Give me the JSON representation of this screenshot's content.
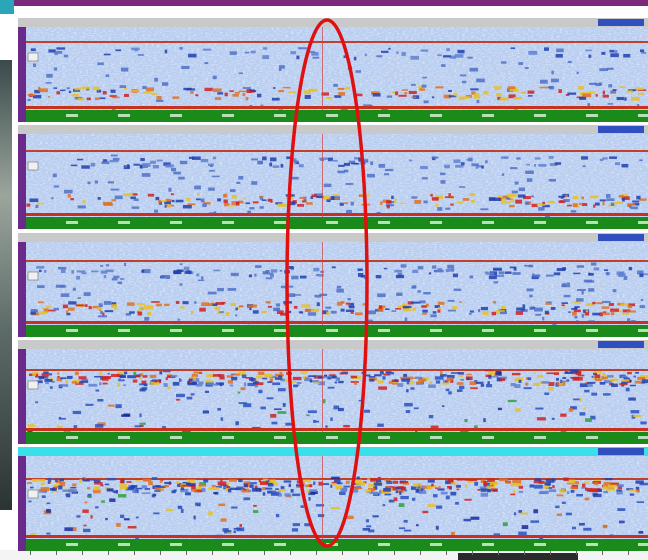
{
  "panels": [
    {
      "active": false
    },
    {
      "active": false
    },
    {
      "active": false
    },
    {
      "active": false
    },
    {
      "active": true
    }
  ]
}
